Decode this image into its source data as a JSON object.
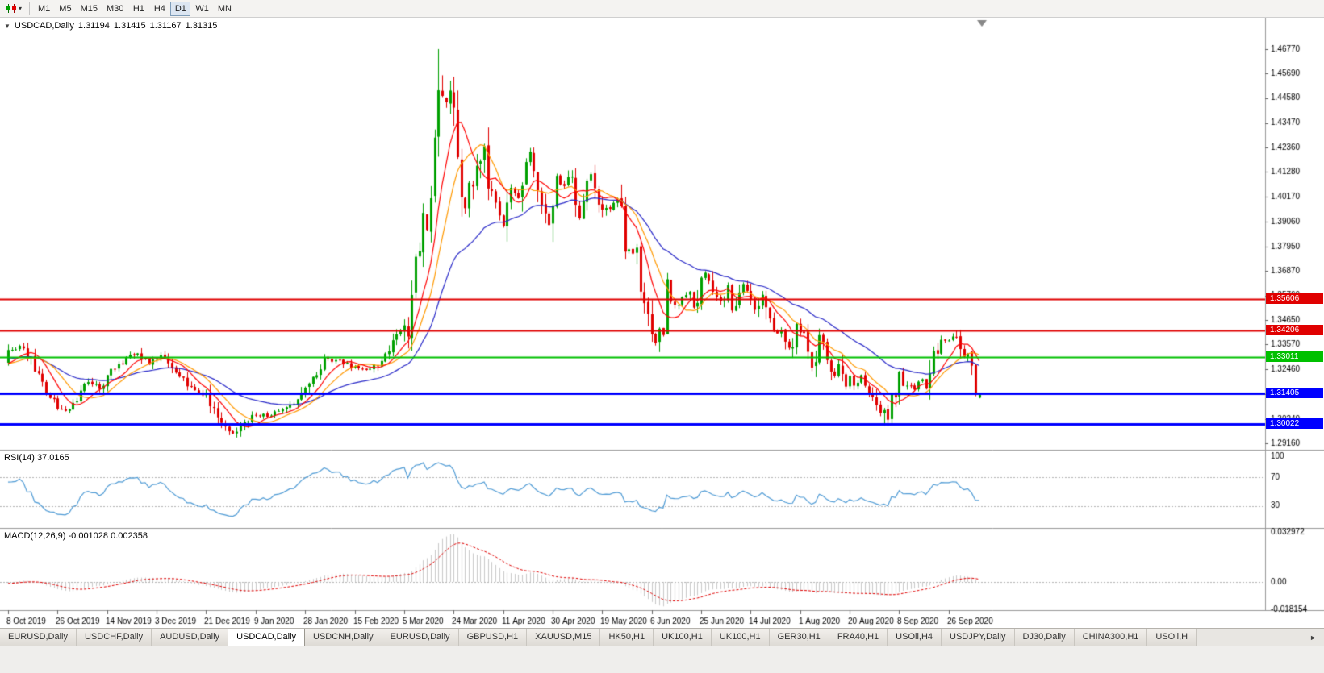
{
  "icons": {
    "chart_type": "candlestick-chart",
    "collapse_chart": "▼",
    "dropdown_caret": "▾",
    "tab_scroll_right": "►"
  },
  "toolbar": {
    "timeframes": [
      "M1",
      "M5",
      "M15",
      "M30",
      "H1",
      "H4",
      "D1",
      "W1",
      "MN"
    ],
    "active_timeframe": "D1",
    "active_timeframe_index": 6
  },
  "chart": {
    "symbol_label": "USDCAD,Daily",
    "ohlc": {
      "open": "1.31194",
      "high": "1.31415",
      "low": "1.31167",
      "close": "1.31315"
    }
  },
  "panels": {
    "rsi": {
      "label": "RSI(14)",
      "value": "37.0165",
      "scale": [
        "100",
        "70",
        "30"
      ]
    },
    "macd": {
      "label": "MACD(12,26,9)",
      "value_main": "-0.001028",
      "value_signal": "0.002358",
      "scale": [
        "0.032972",
        "0.00",
        "-0.018154"
      ]
    }
  },
  "tabs": {
    "items": [
      "EURUSD,Daily",
      "USDCHF,Daily",
      "AUDUSD,Daily",
      "USDCAD,Daily",
      "USDCNH,Daily",
      "EURUSD,Daily",
      "GBPUSD,H1",
      "XAUUSD,M15",
      "HK50,H1",
      "UK100,H1",
      "UK100,H1",
      "GER30,H1",
      "FRA40,H1",
      "USOil,H4",
      "USDJPY,Daily",
      "DJ30,Daily",
      "CHINA300,H1",
      "USOil,H"
    ],
    "active_index": 3
  },
  "chart_data": {
    "type": "candlestick",
    "symbol": "USDCAD",
    "timeframe": "Daily",
    "bar_count": 256,
    "colors": {
      "up": "#00A000",
      "down": "#E00000",
      "rsi": "#4f9bd5",
      "macd_hist": "#c9c9c9",
      "macd_signal": "#e00000",
      "axis_line": "#999999",
      "level_dotted": "#b4b4b4"
    },
    "price_axis_ticks": [
      "1.46770",
      "1.45690",
      "1.44580",
      "1.43470",
      "1.42360",
      "1.41280",
      "1.40170",
      "1.39060",
      "1.37950",
      "1.36870",
      "1.35760",
      "1.34650",
      "1.33570",
      "1.32460",
      "1.31350",
      "1.30240",
      "1.29160"
    ],
    "date_labels": [
      {
        "i": 0,
        "t": "8 Oct 2019"
      },
      {
        "i": 13,
        "t": "26 Oct 2019"
      },
      {
        "i": 26,
        "t": "14 Nov 2019"
      },
      {
        "i": 39,
        "t": "3 Dec 2019"
      },
      {
        "i": 52,
        "t": "21 Dec 2019"
      },
      {
        "i": 65,
        "t": "9 Jan 2020"
      },
      {
        "i": 78,
        "t": "28 Jan 2020"
      },
      {
        "i": 91,
        "t": "15 Feb 2020"
      },
      {
        "i": 104,
        "t": "5 Mar 2020"
      },
      {
        "i": 117,
        "t": "24 Mar 2020"
      },
      {
        "i": 130,
        "t": "11 Apr 2020"
      },
      {
        "i": 143,
        "t": "30 Apr 2020"
      },
      {
        "i": 156,
        "t": "19 May 2020"
      },
      {
        "i": 169,
        "t": "6 Jun 2020"
      },
      {
        "i": 182,
        "t": "25 Jun 2020"
      },
      {
        "i": 195,
        "t": "14 Jul 2020"
      },
      {
        "i": 208,
        "t": "1 Aug 2020"
      },
      {
        "i": 221,
        "t": "20 Aug 2020"
      },
      {
        "i": 234,
        "t": "8 Sep 2020"
      },
      {
        "i": 247,
        "t": "26 Sep 2020"
      }
    ],
    "horizontal_lines": [
      {
        "price": 1.35606,
        "label": "1.35606",
        "color": "#e00000",
        "width": 2
      },
      {
        "price": 1.34206,
        "label": "1.34206",
        "color": "#e00000",
        "width": 2
      },
      {
        "price": 1.33011,
        "label": "1.33011",
        "color": "#00c000",
        "width": 2
      },
      {
        "price": 1.31405,
        "label": "1.31405",
        "color": "#0000ff",
        "width": 3
      },
      {
        "price": 1.30022,
        "label": "1.30022",
        "color": "#0000ff",
        "width": 3
      }
    ],
    "moving_averages": [
      {
        "period": 34,
        "method": "ema",
        "color": "#2828c8"
      },
      {
        "period": 13,
        "method": "sma",
        "color": "#ff9900"
      },
      {
        "period": 8,
        "method": "sma",
        "color": "#ff0000"
      }
    ],
    "indicators": {
      "rsi": {
        "period": 14,
        "current": 37.0165,
        "levels": [
          70,
          30
        ],
        "range": [
          0,
          100
        ]
      },
      "macd": {
        "fast": 12,
        "slow": 26,
        "signal": 9,
        "current_main": -0.001028,
        "current_signal": 0.002358,
        "scale_max": 0.032972,
        "scale_min": -0.018154
      }
    },
    "extremes": {
      "march_high": {
        "index": 113,
        "price": 1.4677
      },
      "march_high2": {
        "index": 114,
        "price": 1.456
      },
      "dec_low": {
        "index": 58,
        "price": 1.2952
      },
      "sep_low": {
        "index": 230,
        "price": 1.2994
      }
    },
    "penultimate_bar": {
      "open": 1.3265,
      "high": 1.3272,
      "low": 1.3126,
      "close": 1.3138
    },
    "last_bar": {
      "open": 1.31194,
      "high": 1.31415,
      "low": 1.31167,
      "close": 1.31315
    },
    "price_waypoints": [
      [
        0,
        1.3325
      ],
      [
        3,
        1.3345
      ],
      [
        6,
        1.329
      ],
      [
        9,
        1.318
      ],
      [
        13,
        1.3075
      ],
      [
        15,
        1.3058
      ],
      [
        17,
        1.309
      ],
      [
        19,
        1.314
      ],
      [
        21,
        1.319
      ],
      [
        24,
        1.3165
      ],
      [
        27,
        1.3235
      ],
      [
        31,
        1.3295
      ],
      [
        34,
        1.332
      ],
      [
        37,
        1.327
      ],
      [
        40,
        1.3305
      ],
      [
        44,
        1.324
      ],
      [
        48,
        1.3165
      ],
      [
        52,
        1.3128
      ],
      [
        55,
        1.304
      ],
      [
        57,
        1.2975
      ],
      [
        58,
        1.2962
      ],
      [
        60,
        1.2968
      ],
      [
        62,
        1.3
      ],
      [
        64,
        1.3045
      ],
      [
        68,
        1.304
      ],
      [
        71,
        1.306
      ],
      [
        74,
        1.3085
      ],
      [
        77,
        1.314
      ],
      [
        81,
        1.3235
      ],
      [
        83,
        1.329
      ],
      [
        87,
        1.328
      ],
      [
        91,
        1.3255
      ],
      [
        94,
        1.325
      ],
      [
        97,
        1.327
      ],
      [
        100,
        1.334
      ],
      [
        102,
        1.3395
      ],
      [
        104,
        1.342
      ],
      [
        105,
        1.3425
      ],
      [
        106,
        1.36
      ],
      [
        107,
        1.373
      ],
      [
        108,
        1.376
      ],
      [
        109,
        1.392
      ],
      [
        110,
        1.383
      ],
      [
        111,
        1.399
      ],
      [
        112,
        1.424
      ],
      [
        113,
        1.449
      ],
      [
        114,
        1.443
      ],
      [
        115,
        1.442
      ],
      [
        116,
        1.448
      ],
      [
        117,
        1.445
      ],
      [
        118,
        1.418
      ],
      [
        119,
        1.406
      ],
      [
        120,
        1.399
      ],
      [
        121,
        1.409
      ],
      [
        122,
        1.406
      ],
      [
        123,
        1.413
      ],
      [
        124,
        1.414
      ],
      [
        125,
        1.421
      ],
      [
        126,
        1.409
      ],
      [
        127,
        1.402
      ],
      [
        128,
        1.4
      ],
      [
        129,
        1.396
      ],
      [
        130,
        1.389
      ],
      [
        132,
        1.405
      ],
      [
        134,
        1.401
      ],
      [
        136,
        1.416
      ],
      [
        137,
        1.421
      ],
      [
        139,
        1.406
      ],
      [
        141,
        1.395
      ],
      [
        142,
        1.389
      ],
      [
        143,
        1.395
      ],
      [
        144,
        1.409
      ],
      [
        146,
        1.406
      ],
      [
        148,
        1.412
      ],
      [
        150,
        1.393
      ],
      [
        152,
        1.407
      ],
      [
        153,
        1.411
      ],
      [
        156,
        1.395
      ],
      [
        158,
        1.397
      ],
      [
        160,
        1.4
      ],
      [
        161,
        1.399
      ],
      [
        162,
        1.379
      ],
      [
        164,
        1.377
      ],
      [
        165,
        1.378
      ],
      [
        166,
        1.357
      ],
      [
        168,
        1.35
      ],
      [
        169,
        1.342
      ],
      [
        170,
        1.336
      ],
      [
        171,
        1.341
      ],
      [
        172,
        1.343
      ],
      [
        173,
        1.362
      ],
      [
        174,
        1.354
      ],
      [
        176,
        1.353
      ],
      [
        178,
        1.358
      ],
      [
        179,
        1.36
      ],
      [
        180,
        1.352
      ],
      [
        181,
        1.356
      ],
      [
        182,
        1.365
      ],
      [
        183,
        1.368
      ],
      [
        184,
        1.365
      ],
      [
        185,
        1.358
      ],
      [
        187,
        1.355
      ],
      [
        188,
        1.354
      ],
      [
        189,
        1.361
      ],
      [
        190,
        1.351
      ],
      [
        192,
        1.359
      ],
      [
        193,
        1.362
      ],
      [
        195,
        1.358
      ],
      [
        196,
        1.351
      ],
      [
        198,
        1.358
      ],
      [
        199,
        1.353
      ],
      [
        200,
        1.345
      ],
      [
        201,
        1.341
      ],
      [
        203,
        1.341
      ],
      [
        204,
        1.335
      ],
      [
        206,
        1.334
      ],
      [
        207,
        1.343
      ],
      [
        208,
        1.341
      ],
      [
        209,
        1.339
      ],
      [
        210,
        1.332
      ],
      [
        211,
        1.326
      ],
      [
        212,
        1.329
      ],
      [
        213,
        1.338
      ],
      [
        214,
        1.335
      ],
      [
        215,
        1.331
      ],
      [
        216,
        1.325
      ],
      [
        217,
        1.322
      ],
      [
        218,
        1.326
      ],
      [
        219,
        1.32
      ],
      [
        220,
        1.316
      ],
      [
        221,
        1.322
      ],
      [
        222,
        1.317
      ],
      [
        223,
        1.318
      ],
      [
        224,
        1.322
      ],
      [
        225,
        1.318
      ],
      [
        226,
        1.316
      ],
      [
        227,
        1.311
      ],
      [
        228,
        1.31
      ],
      [
        229,
        1.304
      ],
      [
        230,
        1.306
      ],
      [
        231,
        1.303
      ],
      [
        232,
        1.313
      ],
      [
        233,
        1.31
      ],
      [
        234,
        1.323
      ],
      [
        235,
        1.316
      ],
      [
        237,
        1.318
      ],
      [
        238,
        1.316
      ],
      [
        240,
        1.32
      ],
      [
        241,
        1.316
      ],
      [
        242,
        1.32
      ],
      [
        243,
        1.331
      ],
      [
        244,
        1.333
      ],
      [
        245,
        1.338
      ],
      [
        246,
        1.337
      ],
      [
        247,
        1.338
      ],
      [
        248,
        1.3385
      ],
      [
        249,
        1.34
      ],
      [
        250,
        1.3345
      ],
      [
        251,
        1.33
      ],
      [
        252,
        1.332
      ],
      [
        253,
        1.327
      ],
      [
        254,
        1.314
      ],
      [
        255,
        1.3132
      ]
    ]
  }
}
